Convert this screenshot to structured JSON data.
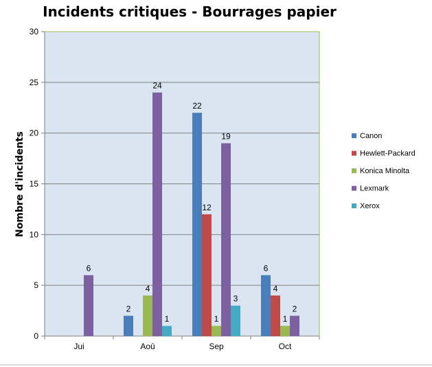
{
  "chart_data": {
    "type": "bar",
    "title": "Incidents critiques - Bourrages papier",
    "xlabel": "",
    "ylabel": "Nombre d'incidents",
    "ylim": [
      0,
      30
    ],
    "yticks": [
      0,
      5,
      10,
      15,
      20,
      25,
      30
    ],
    "grid": true,
    "legend": "right",
    "categories": [
      "Jui",
      "Aoû",
      "Sep",
      "Oct"
    ],
    "series": [
      {
        "name": "Canon",
        "color": "#4a7ebb",
        "values": [
          0,
          2,
          22,
          6
        ]
      },
      {
        "name": "Hewlett-Packard",
        "color": "#be4b48",
        "values": [
          0,
          0,
          12,
          4
        ]
      },
      {
        "name": "Konica Minolta",
        "color": "#98b954",
        "values": [
          0,
          4,
          1,
          1
        ]
      },
      {
        "name": "Lexmark",
        "color": "#7d60a0",
        "values": [
          6,
          24,
          19,
          2
        ]
      },
      {
        "name": "Xerox",
        "color": "#46aac5",
        "values": [
          0,
          1,
          3,
          0
        ]
      }
    ],
    "colors": {
      "plot_bg": "#dbe5f1",
      "plot_border": "#9bbb59",
      "grid": "#7f7f7f"
    }
  }
}
